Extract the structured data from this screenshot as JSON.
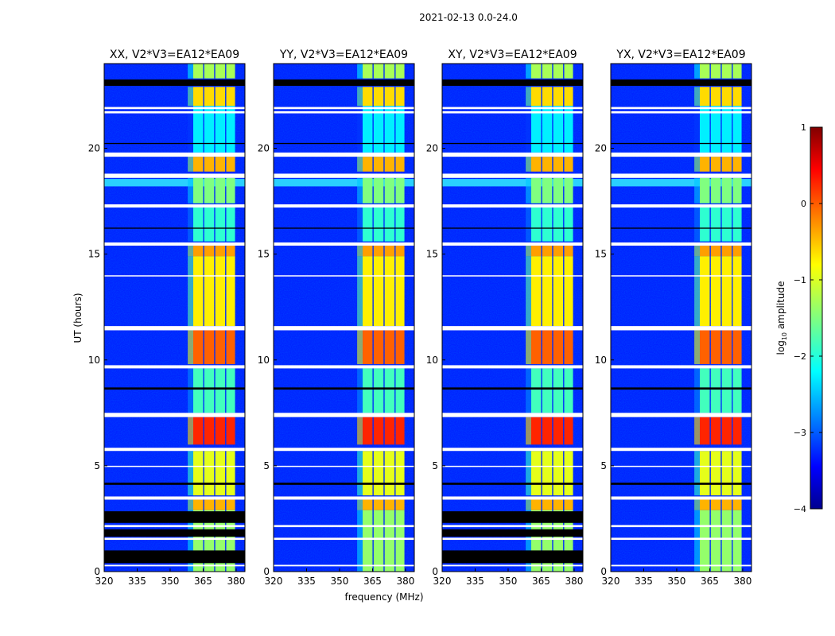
{
  "chart_data": {
    "type": "heatmap",
    "title": "2021-02-13 0.0-24.0",
    "xlabel": "frequency (MHz)",
    "ylabel": "UT (hours)",
    "xlim": [
      320,
      384
    ],
    "ylim": [
      0,
      24
    ],
    "xticks": [
      "320",
      "335",
      "350",
      "365",
      "380"
    ],
    "xtick_values": [
      320,
      335,
      350,
      365,
      380
    ],
    "yticks": [
      "0",
      "5",
      "10",
      "15",
      "20"
    ],
    "ytick_values": [
      0,
      5,
      10,
      15,
      20
    ],
    "panels": [
      {
        "title": "XX, V2*V3=EA12*EA09",
        "black_low": true
      },
      {
        "title": "YY, V2*V3=EA12*EA09",
        "black_low": false
      },
      {
        "title": "XY, V2*V3=EA12*EA09",
        "black_low": true
      },
      {
        "title": "YX, V2*V3=EA12*EA09",
        "black_low": false
      }
    ],
    "background_log_amplitude": -3.2,
    "rfi_channels_mhz": [
      [
        360.5,
        365
      ],
      [
        365.5,
        370
      ],
      [
        370.5,
        375
      ],
      [
        375.5,
        379.5
      ]
    ],
    "rfi_levels": [
      {
        "t": [
          23.3,
          24.0
        ],
        "value": -1.3
      },
      {
        "t": [
          22.0,
          22.9
        ],
        "value": -0.7
      },
      {
        "t": [
          19.8,
          22.0
        ],
        "value": -2.2
      },
      {
        "t": [
          18.9,
          19.6
        ],
        "value": -0.5
      },
      {
        "t": [
          17.4,
          18.6
        ],
        "value": -1.5
      },
      {
        "t": [
          15.6,
          17.2
        ],
        "value": -1.9
      },
      {
        "t": [
          14.9,
          15.4
        ],
        "value": -0.4
      },
      {
        "t": [
          11.6,
          14.9
        ],
        "value": -0.8
      },
      {
        "t": [
          9.8,
          11.4
        ],
        "value": -0.1
      },
      {
        "t": [
          7.5,
          9.6
        ],
        "value": -1.8
      },
      {
        "t": [
          6.0,
          7.3
        ],
        "value": 0.2
      },
      {
        "t": [
          3.6,
          5.7
        ],
        "value": -1.0
      },
      {
        "t": [
          2.9,
          3.4
        ],
        "value": -0.5
      },
      {
        "t": [
          0.0,
          2.9
        ],
        "value": -1.4
      }
    ],
    "flagged_white_hours": [
      [
        21.65,
        21.75
      ],
      [
        21.85,
        21.95
      ],
      [
        19.6,
        19.8
      ],
      [
        18.6,
        18.8
      ],
      [
        17.2,
        17.35
      ],
      [
        15.4,
        15.55
      ],
      [
        13.95,
        14.0
      ],
      [
        11.4,
        11.6
      ],
      [
        9.6,
        9.75
      ],
      [
        7.3,
        7.5
      ],
      [
        5.7,
        5.85
      ],
      [
        4.95,
        5.0
      ],
      [
        3.4,
        3.55
      ],
      [
        2.1,
        2.2
      ],
      [
        1.5,
        1.6
      ],
      [
        0.25,
        0.32
      ]
    ],
    "flagged_black_hours": [
      [
        22.95,
        23.25
      ],
      [
        20.2,
        20.25
      ],
      [
        16.2,
        16.25
      ],
      [
        8.6,
        8.7
      ],
      [
        4.1,
        4.2
      ]
    ],
    "flagged_black_low_hours": [
      [
        0.4,
        1.0
      ],
      [
        1.65,
        2.0
      ],
      [
        2.3,
        2.85
      ]
    ],
    "cyan_strip_hours": [
      18.2,
      18.55
    ],
    "colorbar": {
      "label": "log₁₀ amplitude",
      "label_main": "log",
      "label_sub": "10",
      "label_rest": " amplitude",
      "range": [
        -4,
        1
      ],
      "ticks": [
        "1",
        "0",
        "−1",
        "−2",
        "−3",
        "−4"
      ],
      "tick_values": [
        1,
        0,
        -1,
        -2,
        -3,
        -4
      ]
    }
  }
}
